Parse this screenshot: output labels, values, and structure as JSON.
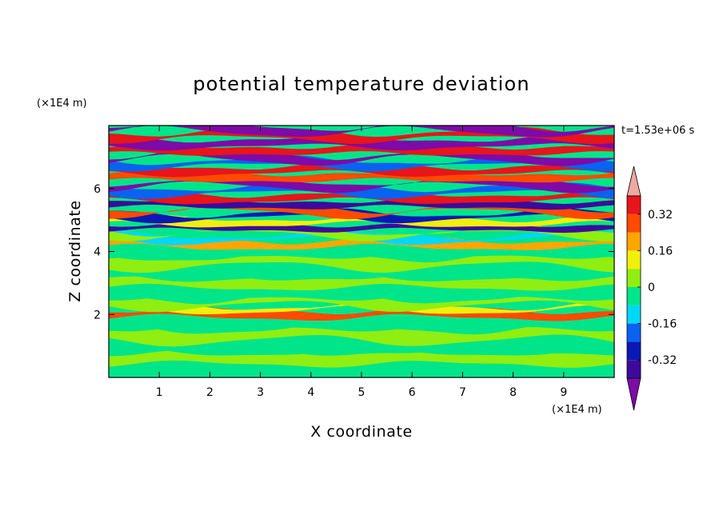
{
  "chart_data": {
    "type": "heatmap",
    "title": "potential temperature deviation",
    "xlabel": "X coordinate",
    "ylabel": "Z coordinate",
    "x_unit": "(×1E4 m)",
    "y_unit": "(×1E4 m)",
    "time_label": "t=1.53e+06 s",
    "xlim": [
      0,
      10
    ],
    "ylim": [
      0,
      8
    ],
    "x_ticks": [
      "1",
      "2",
      "3",
      "4",
      "5",
      "6",
      "7",
      "8",
      "9"
    ],
    "y_ticks": [
      "2",
      "4",
      "6"
    ],
    "colorbar": {
      "levels": [
        -0.4,
        -0.32,
        -0.24,
        -0.16,
        -0.08,
        0,
        0.08,
        0.16,
        0.24,
        0.32,
        0.4
      ],
      "labels": [
        "0.32",
        "0.16",
        "0",
        "-0.16",
        "-0.32"
      ],
      "label_values": [
        0.32,
        0.16,
        0,
        -0.16,
        -0.32
      ],
      "extend": "both",
      "colors": [
        "#7e0aa8",
        "#3d0a9c",
        "#0a18b5",
        "#0a62f0",
        "#00d8f5",
        "#00e58a",
        "#90ee10",
        "#f0f00a",
        "#ffa500",
        "#ff4a00",
        "#e8151a",
        "#f0a8a0"
      ]
    },
    "bands": [
      {
        "z": 0.25,
        "level": 0
      },
      {
        "z": 0.6,
        "level": 1
      },
      {
        "z": 1.0,
        "level": 0
      },
      {
        "z": 1.35,
        "level": 1
      },
      {
        "z": 1.75,
        "level": 0
      },
      {
        "z": 2.05,
        "level": 4
      },
      {
        "z": 2.2,
        "level": 2
      },
      {
        "z": 2.35,
        "level": 1
      },
      {
        "z": 2.7,
        "level": 0
      },
      {
        "z": 3.0,
        "level": 1
      },
      {
        "z": 3.35,
        "level": 0
      },
      {
        "z": 3.7,
        "level": 1
      },
      {
        "z": 4.0,
        "level": 0
      },
      {
        "z": 4.25,
        "level": 3
      },
      {
        "z": 4.45,
        "level": -1
      },
      {
        "z": 4.6,
        "level": 1
      },
      {
        "z": 4.75,
        "level": -4
      },
      {
        "z": 4.95,
        "level": 2
      },
      {
        "z": 5.15,
        "level": -3
      },
      {
        "z": 5.3,
        "level": 4
      },
      {
        "z": 5.5,
        "level": -4
      },
      {
        "z": 5.7,
        "level": 5
      },
      {
        "z": 5.95,
        "level": -2
      },
      {
        "z": 6.15,
        "level": -5
      },
      {
        "z": 6.35,
        "level": 4
      },
      {
        "z": 6.6,
        "level": 5
      },
      {
        "z": 6.8,
        "level": -2
      },
      {
        "z": 7.0,
        "level": -5
      },
      {
        "z": 7.2,
        "level": 5
      },
      {
        "z": 7.45,
        "level": -5
      },
      {
        "z": 7.7,
        "level": 5
      },
      {
        "z": 7.9,
        "level": -5
      }
    ]
  }
}
